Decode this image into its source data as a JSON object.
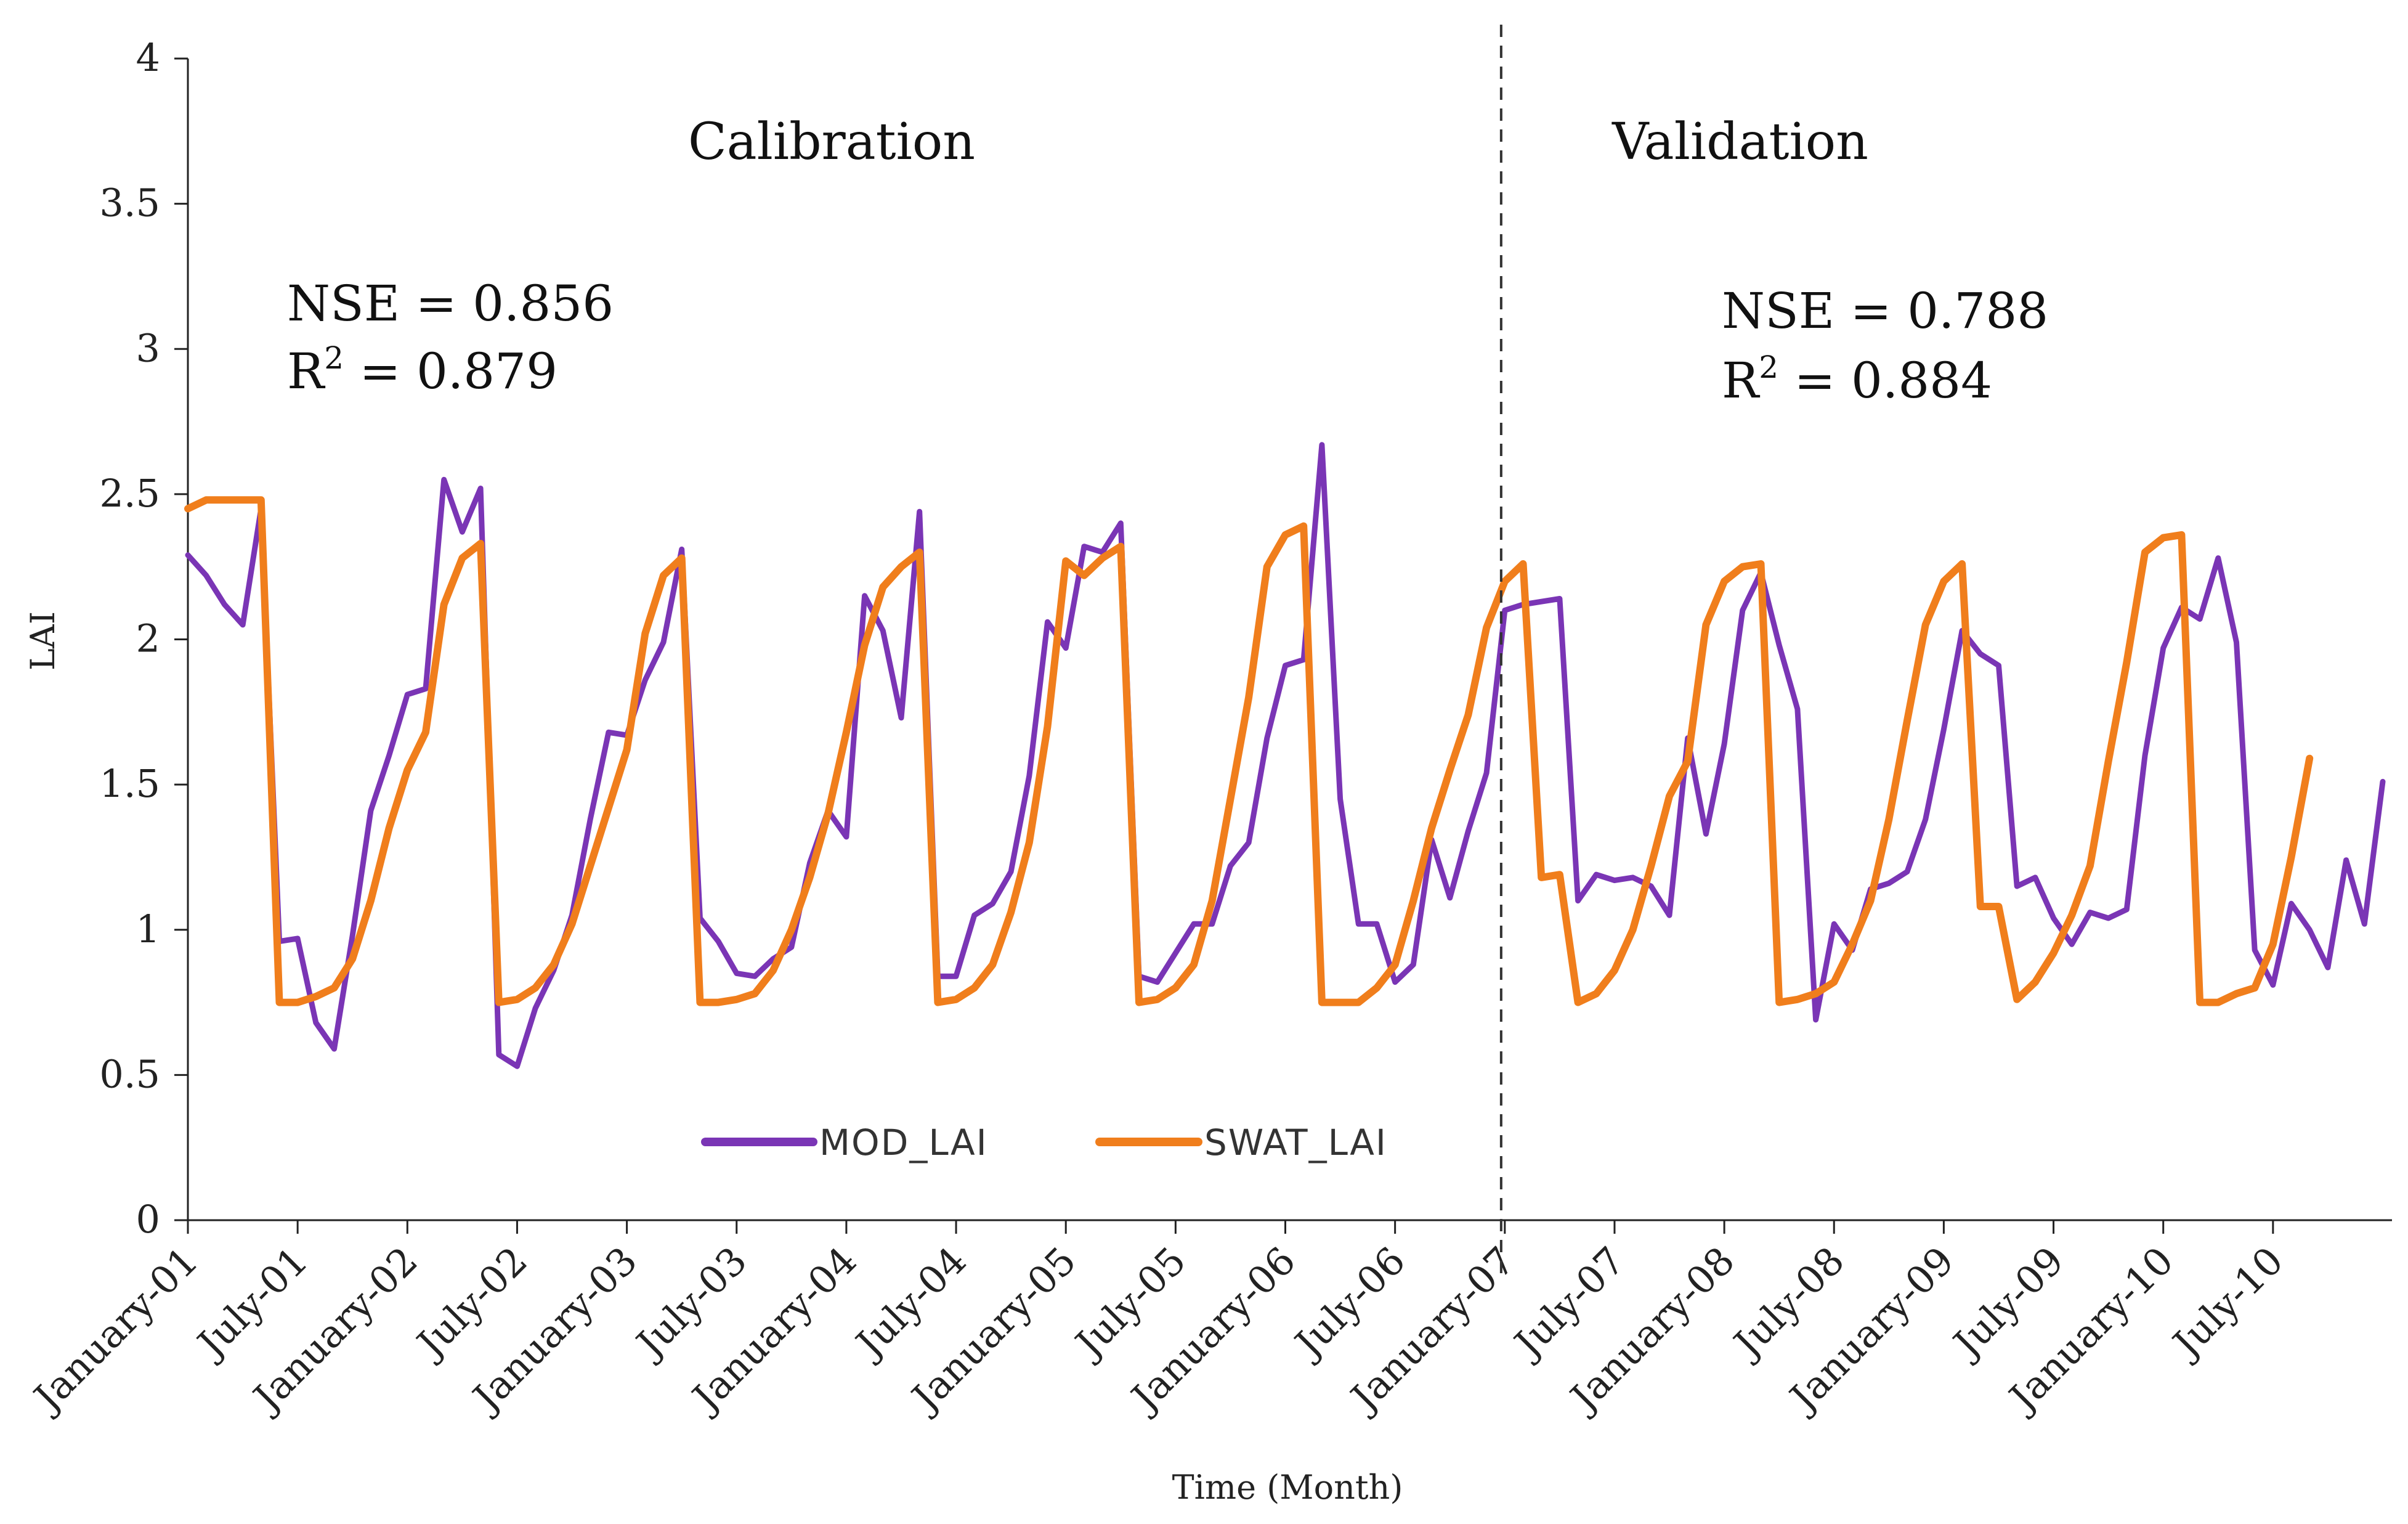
{
  "chart_data": {
    "type": "line",
    "xlabel": "Time (Month)",
    "ylabel": "LAI",
    "ylim": [
      0,
      4
    ],
    "y_ticks": [
      "0",
      "0.5",
      "1",
      "1.5",
      "2",
      "2.5",
      "3",
      "3.5",
      "4"
    ],
    "x_tick_labels": [
      "January-01",
      "July-01",
      "January-02",
      "July-02",
      "January-03",
      "July-03",
      "January-04",
      "July-04",
      "January-05",
      "July-05",
      "January-06",
      "July-06",
      "January-07",
      "July-07",
      "January-08",
      "July-08",
      "January-09",
      "July-09",
      "January-10",
      "July-10"
    ],
    "x_tick_month_index": [
      0,
      6,
      12,
      18,
      24,
      30,
      36,
      42,
      48,
      54,
      60,
      66,
      72,
      78,
      84,
      90,
      96,
      102,
      108,
      114
    ],
    "period_split_month": 71.8,
    "periods": [
      {
        "name": "Calibration",
        "nse_label": "NSE = 0.856",
        "r2_label": "R",
        "r2_sup": "2",
        "r2_value": " = 0.879"
      },
      {
        "name": "Validation",
        "nse_label": "NSE = 0.788",
        "r2_label": "R",
        "r2_sup": "2",
        "r2_value": " = 0.884"
      }
    ],
    "series": [
      {
        "name": "MOD_LAI",
        "color": "#7a35b5",
        "values": [
          2.29,
          2.22,
          2.12,
          2.05,
          2.45,
          0.96,
          0.97,
          0.68,
          0.59,
          0.98,
          1.41,
          1.6,
          1.81,
          1.83,
          2.55,
          2.37,
          2.52,
          0.57,
          0.53,
          0.73,
          0.86,
          1.05,
          1.38,
          1.68,
          1.67,
          1.86,
          1.99,
          2.31,
          1.04,
          0.96,
          0.85,
          0.84,
          0.9,
          0.94,
          1.23,
          1.41,
          1.32,
          2.15,
          2.03,
          1.73,
          2.44,
          0.84,
          0.84,
          1.05,
          1.09,
          1.2,
          1.53,
          2.06,
          1.97,
          2.32,
          2.3,
          2.4,
          0.84,
          0.82,
          0.92,
          1.02,
          1.02,
          1.22,
          1.3,
          1.66,
          1.91,
          1.93,
          2.67,
          1.45,
          1.02,
          1.02,
          0.82,
          0.88,
          1.31,
          1.11,
          1.34,
          1.54,
          2.1,
          2.12,
          2.13,
          2.14,
          1.1,
          1.19,
          1.17,
          1.18,
          1.15,
          1.05,
          1.66,
          1.33,
          1.64,
          2.1,
          2.23,
          1.98,
          1.76,
          0.69,
          1.02,
          0.93,
          1.14,
          1.16,
          1.2,
          1.38,
          1.69,
          2.03,
          1.95,
          1.91,
          1.15,
          1.18,
          1.04,
          0.95,
          1.06,
          1.04,
          1.07,
          1.6,
          1.97,
          2.11,
          2.07,
          2.28,
          1.99,
          0.93,
          0.81,
          1.09,
          1.0,
          0.87,
          1.24,
          1.02,
          1.51
        ]
      },
      {
        "name": "SWAT_LAI",
        "color": "#f07e1c",
        "values": [
          2.45,
          2.48,
          2.48,
          2.48,
          2.48,
          0.75,
          0.75,
          0.77,
          0.8,
          0.9,
          1.1,
          1.35,
          1.55,
          1.68,
          2.12,
          2.28,
          2.33,
          0.75,
          0.76,
          0.8,
          0.88,
          1.02,
          1.22,
          1.42,
          1.62,
          2.02,
          2.22,
          2.28,
          0.75,
          0.75,
          0.76,
          0.78,
          0.86,
          1.0,
          1.18,
          1.4,
          1.68,
          1.98,
          2.18,
          2.25,
          2.3,
          0.75,
          0.76,
          0.8,
          0.88,
          1.06,
          1.3,
          1.7,
          2.27,
          2.22,
          2.28,
          2.32,
          0.75,
          0.76,
          0.8,
          0.88,
          1.1,
          1.45,
          1.8,
          2.25,
          2.36,
          2.39,
          0.75,
          0.75,
          0.75,
          0.8,
          0.88,
          1.1,
          1.35,
          1.55,
          1.74,
          2.04,
          2.2,
          2.26,
          1.18,
          1.19,
          0.75,
          0.78,
          0.86,
          1.0,
          1.22,
          1.46,
          1.58,
          2.05,
          2.2,
          2.25,
          2.26,
          0.75,
          0.76,
          0.78,
          0.82,
          0.95,
          1.1,
          1.38,
          1.72,
          2.05,
          2.2,
          2.26,
          1.08,
          1.08,
          0.76,
          0.82,
          0.92,
          1.05,
          1.22,
          1.58,
          1.92,
          2.3,
          2.35,
          2.36,
          0.75,
          0.75,
          0.78,
          0.8,
          0.95,
          1.25,
          1.59
        ]
      }
    ]
  }
}
